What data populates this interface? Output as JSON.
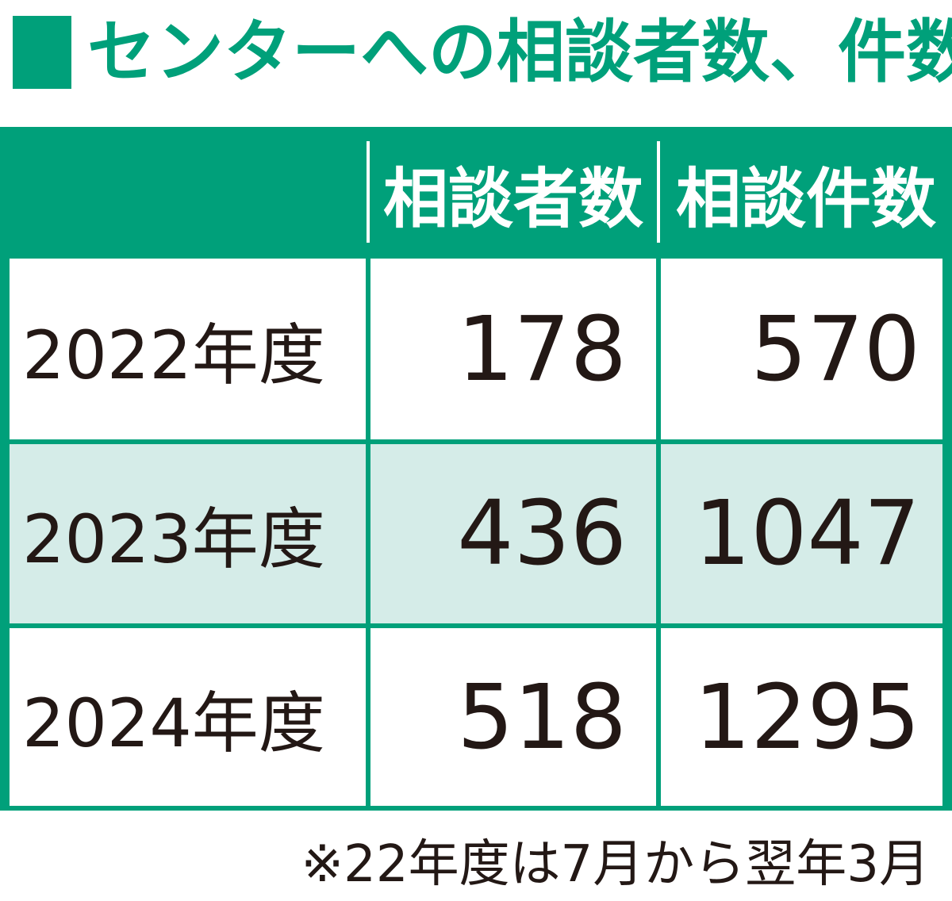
{
  "title": "■センターへの相談者数、件数",
  "title_text": "センターへの相談者数、件数",
  "accent_color": "#00a07a",
  "alt_row_color": "#d5ece8",
  "chart_data": {
    "type": "table",
    "title": "センターへの相談者数、件数",
    "columns": [
      "",
      "相談者数",
      "相談件数"
    ],
    "rows": [
      {
        "label": "2022年度",
        "values": [
          "178",
          "570"
        ]
      },
      {
        "label": "2023年度",
        "values": [
          "436",
          "1047"
        ]
      },
      {
        "label": "2024年度",
        "values": [
          "518",
          "1295"
        ]
      }
    ],
    "note": "※22年度は7月から翌年3月"
  }
}
